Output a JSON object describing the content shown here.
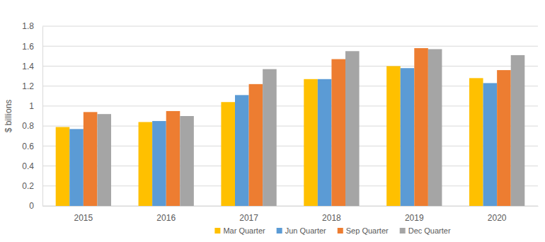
{
  "chart_data": {
    "type": "bar",
    "y_label": "$ billions",
    "categories": [
      "2015",
      "2016",
      "2017",
      "2018",
      "2019",
      "2020"
    ],
    "series": [
      {
        "name": "Mar Quarter",
        "color": "#FFC000",
        "values": [
          0.79,
          0.84,
          1.04,
          1.27,
          1.4,
          1.28
        ]
      },
      {
        "name": "Jun Quarter",
        "color": "#5B9BD5",
        "values": [
          0.77,
          0.85,
          1.11,
          1.27,
          1.38,
          1.23
        ]
      },
      {
        "name": "Sep Quarter",
        "color": "#ED7D31",
        "values": [
          0.94,
          0.95,
          1.22,
          1.47,
          1.58,
          1.36
        ]
      },
      {
        "name": "Dec Quarter",
        "color": "#A5A5A5",
        "values": [
          0.92,
          0.9,
          1.37,
          1.55,
          1.57,
          1.51
        ]
      }
    ],
    "ylim": [
      0,
      1.8
    ],
    "yticks": [
      0,
      0.2,
      0.4,
      0.6,
      0.8,
      1,
      1.2,
      1.4,
      1.6,
      1.8
    ],
    "grid": true,
    "legend": "bottom"
  }
}
